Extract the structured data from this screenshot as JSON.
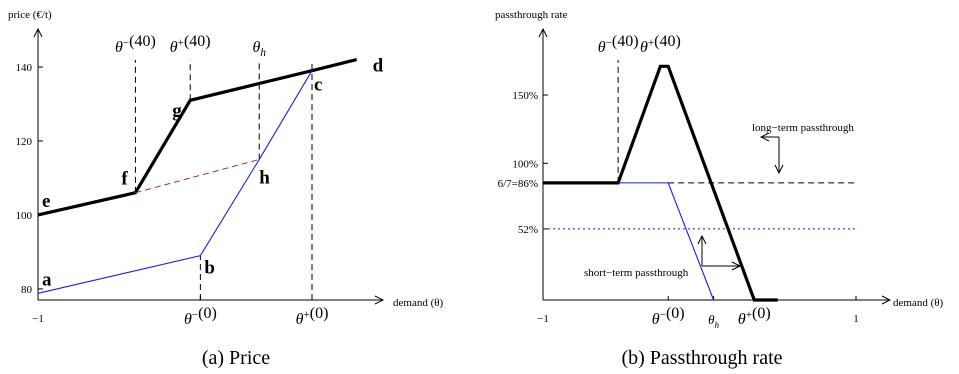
{
  "colors": {
    "long_term": "#000000",
    "short_term": "#1a1aff",
    "mid_dash": "#a0303a"
  },
  "chart_data": [
    {
      "type": "line",
      "caption": "(a)  Price",
      "ylabel": "price (€/t)",
      "xlabel": "demand (θ)",
      "x_ticks": [
        {
          "x": -1,
          "label": "−1"
        },
        {
          "x": -0.2,
          "label": "θ⁻(0)"
        },
        {
          "x": 0.35,
          "label": "θ⁺(0)"
        }
      ],
      "y_ticks": [
        80,
        100,
        120,
        140
      ],
      "ylim": [
        77,
        150
      ],
      "xlim": [
        -1,
        0.5
      ],
      "top_labels": [
        {
          "x": -0.52,
          "label": "θ⁻(40)"
        },
        {
          "x": -0.25,
          "label": "θ⁺(40)"
        },
        {
          "x": 0.09,
          "label": "θh"
        }
      ],
      "series": [
        {
          "style": "long-term",
          "points": [
            [
              -1,
              100
            ],
            [
              -0.52,
              106
            ],
            [
              -0.25,
              131
            ],
            [
              0.35,
              139
            ],
            [
              0.57,
              142
            ]
          ]
        },
        {
          "style": "short-term",
          "points": [
            [
              -1,
              78.8
            ],
            [
              -0.2,
              89
            ],
            [
              0.09,
              115
            ],
            [
              0.35,
              139
            ]
          ]
        },
        {
          "style": "dashed",
          "points": [
            [
              -0.52,
              106
            ],
            [
              0.09,
              115
            ]
          ]
        }
      ],
      "vlines": [
        {
          "x": -0.52,
          "from": 106
        },
        {
          "x": -0.25,
          "from": 131
        },
        {
          "x": 0.09,
          "from": 115
        },
        {
          "x": 0.35,
          "from": 77
        },
        {
          "x": -0.2,
          "from": 77,
          "to": 89
        }
      ],
      "points": [
        {
          "label": "a",
          "x": -1,
          "y": 78.8
        },
        {
          "label": "b",
          "x": -0.2,
          "y": 89
        },
        {
          "label": "c",
          "x": 0.35,
          "y": 139
        },
        {
          "label": "d",
          "x": 0.57,
          "y": 142
        },
        {
          "label": "e",
          "x": -1,
          "y": 100
        },
        {
          "label": "f",
          "x": -0.52,
          "y": 106
        },
        {
          "label": "g",
          "x": -0.25,
          "y": 131
        },
        {
          "label": "h",
          "x": 0.09,
          "y": 115
        }
      ]
    },
    {
      "type": "line",
      "caption": "(b)  Passthrough rate",
      "ylabel": "passthrough rate",
      "xlabel": "demand (θ)",
      "x_ticks": [
        {
          "x": -1,
          "label": "−1"
        },
        {
          "x": -0.2,
          "label": "θ⁻(0)"
        },
        {
          "x": 0.09,
          "label": "θh"
        },
        {
          "x": 0.35,
          "label": "θ⁺(0)"
        },
        {
          "x": 1,
          "label": "1"
        }
      ],
      "y_ticks": [
        {
          "y": 1.5,
          "label": "150%"
        },
        {
          "y": 1.0,
          "label": "100%"
        },
        {
          "y": 0.857,
          "label": "6/7=86%"
        },
        {
          "y": 0.52,
          "label": "52%"
        }
      ],
      "ylim": [
        0,
        1.85
      ],
      "xlim": [
        -1,
        1.05
      ],
      "top_labels": [
        {
          "x": -0.52,
          "label": "θ⁻(40)"
        },
        {
          "x": -0.25,
          "label": "θ⁺(40)"
        }
      ],
      "series": [
        {
          "style": "long-term",
          "points": [
            [
              -1,
              0.857
            ],
            [
              -0.52,
              0.857
            ],
            [
              -0.25,
              1.71
            ],
            [
              -0.2,
              1.71
            ],
            [
              0.35,
              0
            ],
            [
              0.5,
              0
            ]
          ]
        },
        {
          "style": "short-term",
          "points": [
            [
              -0.52,
              0.857
            ],
            [
              -0.2,
              0.857
            ],
            [
              0.09,
              0
            ]
          ]
        }
      ],
      "hlines": [
        {
          "y": 0.857,
          "from": -0.2,
          "to": 1.0,
          "style": "dashed"
        },
        {
          "y": 0.52,
          "from": -1,
          "to": 1.0,
          "style": "dotted"
        }
      ],
      "vlines": [
        {
          "x": -0.52,
          "from": 0.857
        }
      ],
      "annotations": [
        "long−term passthrough",
        "short−term passthrough"
      ]
    }
  ]
}
